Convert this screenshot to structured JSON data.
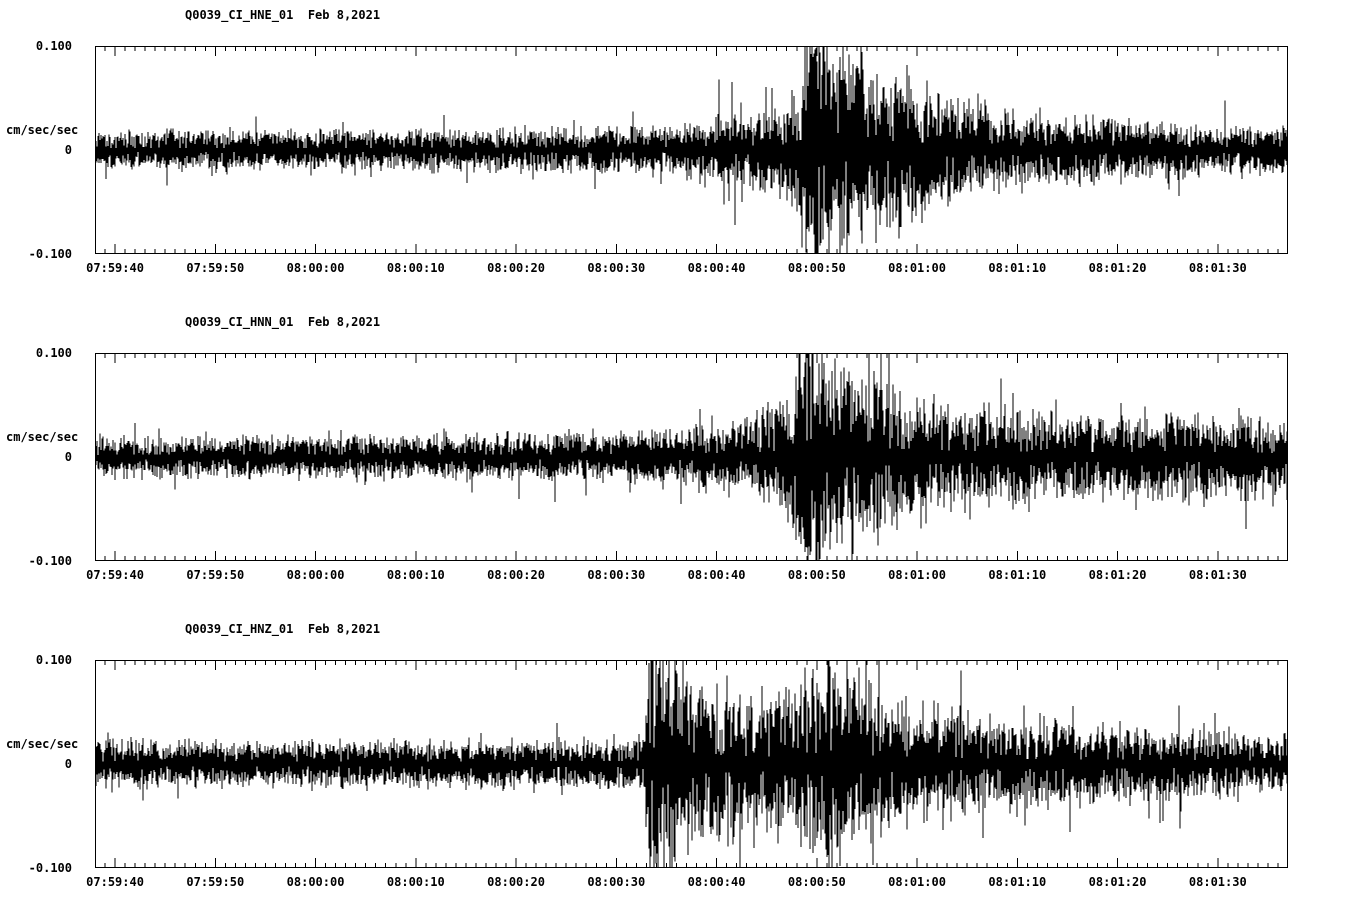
{
  "page": {
    "background": "#ffffff",
    "foreground": "#000000"
  },
  "chart_data": [
    {
      "type": "line",
      "subtype": "seismogram",
      "title": "Q0039_CI_HNE_01  Feb 8,2021",
      "ylabel": "cm/sec/sec",
      "y_tick_labels": [
        "0.100",
        "0",
        "-0.100"
      ],
      "ylim": [
        -0.1,
        0.1
      ],
      "duration_s": 119,
      "x_tick_labels": [
        "07:59:40",
        "07:59:50",
        "08:00:00",
        "08:00:10",
        "08:00:20",
        "08:00:30",
        "08:00:40",
        "08:00:50",
        "08:01:00",
        "08:01:10",
        "08:01:20",
        "08:01:30"
      ],
      "x_tick_offsets_s": [
        2,
        12,
        22,
        32,
        42,
        52,
        62,
        72,
        82,
        92,
        102,
        112
      ],
      "seed": 101,
      "envelope": {
        "t": [
          0,
          30,
          45,
          55,
          60,
          63,
          66,
          69,
          70.5,
          71.5,
          73,
          75,
          77,
          81,
          86,
          92,
          100,
          110,
          119
        ],
        "a": [
          0.012,
          0.012,
          0.013,
          0.014,
          0.016,
          0.02,
          0.024,
          0.03,
          0.055,
          0.1,
          0.08,
          0.062,
          0.055,
          0.045,
          0.032,
          0.025,
          0.02,
          0.016,
          0.014
        ]
      },
      "spikes": [
        {
          "t": 62.2,
          "a": 0.068
        },
        {
          "t": 63.8,
          "a": -0.072
        },
        {
          "t": 76.5,
          "a": -0.09
        },
        {
          "t": 80.2,
          "a": -0.085
        },
        {
          "t": 82.5,
          "a": -0.07
        }
      ]
    },
    {
      "type": "line",
      "subtype": "seismogram",
      "title": "Q0039_CI_HNN_01  Feb 8,2021",
      "ylabel": "cm/sec/sec",
      "y_tick_labels": [
        "0.100",
        "0",
        "-0.100"
      ],
      "ylim": [
        -0.1,
        0.1
      ],
      "duration_s": 119,
      "x_tick_labels": [
        "07:59:40",
        "07:59:50",
        "08:00:00",
        "08:00:10",
        "08:00:20",
        "08:00:30",
        "08:00:40",
        "08:00:50",
        "08:01:00",
        "08:01:10",
        "08:01:20",
        "08:01:30"
      ],
      "x_tick_offsets_s": [
        2,
        12,
        22,
        32,
        42,
        52,
        62,
        72,
        82,
        92,
        102,
        112
      ],
      "seed": 202,
      "envelope": {
        "t": [
          0,
          30,
          45,
          55,
          60,
          64,
          67,
          69.5,
          71,
          72.5,
          74,
          76,
          79,
          83,
          88,
          94,
          100,
          106,
          112,
          119
        ],
        "a": [
          0.012,
          0.013,
          0.014,
          0.016,
          0.018,
          0.022,
          0.028,
          0.045,
          0.09,
          0.075,
          0.06,
          0.055,
          0.045,
          0.038,
          0.032,
          0.028,
          0.026,
          0.028,
          0.025,
          0.022
        ]
      },
      "spikes": [
        {
          "t": 58.5,
          "a": -0.045
        },
        {
          "t": 75.5,
          "a": -0.085
        },
        {
          "t": 79.0,
          "a": 0.07
        }
      ]
    },
    {
      "type": "line",
      "subtype": "seismogram",
      "title": "Q0039_CI_HNZ_01  Feb 8,2021",
      "ylabel": "cm/sec/sec",
      "y_tick_labels": [
        "0.100",
        "0",
        "-0.100"
      ],
      "ylim": [
        -0.1,
        0.1
      ],
      "duration_s": 119,
      "x_tick_labels": [
        "07:59:40",
        "07:59:50",
        "08:00:00",
        "08:00:10",
        "08:00:20",
        "08:00:30",
        "08:00:40",
        "08:00:50",
        "08:01:00",
        "08:01:10",
        "08:01:20",
        "08:01:30"
      ],
      "x_tick_offsets_s": [
        2,
        12,
        22,
        32,
        42,
        52,
        62,
        72,
        82,
        92,
        102,
        112
      ],
      "seed": 303,
      "envelope": {
        "t": [
          0,
          30,
          45,
          52,
          54.8,
          55.5,
          56.5,
          58,
          60,
          63,
          66,
          69,
          71,
          73,
          75,
          78,
          82,
          87,
          93,
          100,
          108,
          119
        ],
        "a": [
          0.014,
          0.014,
          0.015,
          0.016,
          0.018,
          0.09,
          0.08,
          0.065,
          0.052,
          0.046,
          0.04,
          0.042,
          0.055,
          0.065,
          0.055,
          0.045,
          0.038,
          0.032,
          0.027,
          0.024,
          0.021,
          0.018
        ]
      },
      "spikes": [
        {
          "t": 56.2,
          "a": -0.075
        },
        {
          "t": 61.5,
          "a": -0.06
        },
        {
          "t": 73.8,
          "a": 0.088
        },
        {
          "t": 106.5,
          "a": -0.055
        }
      ]
    }
  ]
}
